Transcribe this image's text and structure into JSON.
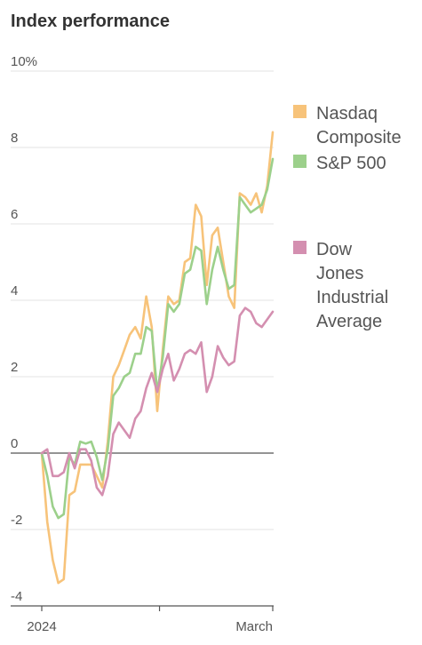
{
  "chart_data": {
    "type": "line",
    "title": "Index performance",
    "xlabel": "",
    "ylabel": "",
    "ylim": [
      -4,
      10
    ],
    "y_ticks": [
      {
        "value": 10,
        "label": "10%"
      },
      {
        "value": 8,
        "label": "8"
      },
      {
        "value": 6,
        "label": "6"
      },
      {
        "value": 4,
        "label": "4"
      },
      {
        "value": 2,
        "label": "2"
      },
      {
        "value": 0,
        "label": "0"
      },
      {
        "value": -2,
        "label": "-2"
      },
      {
        "value": -4,
        "label": "-4"
      }
    ],
    "x_ticks": [
      {
        "index": 0,
        "label": "2024"
      },
      {
        "index": 26,
        "label": ""
      },
      {
        "index": 51,
        "label": "March"
      }
    ],
    "grid": true,
    "legend_position": "right",
    "series": [
      {
        "name": "Nasdaq Composite",
        "legend_lines": [
          "Nasdaq",
          "Composite"
        ],
        "color": "#f7c37a",
        "values": [
          0,
          -1.8,
          -2.8,
          -3.4,
          -3.3,
          -1.1,
          -1.0,
          -0.3,
          -0.3,
          -0.3,
          -0.6,
          -0.9,
          0.3,
          2.0,
          2.3,
          2.7,
          3.1,
          3.3,
          3.0,
          4.1,
          3.3,
          1.1,
          2.7,
          4.1,
          3.9,
          4.0,
          5.0,
          5.1,
          6.5,
          6.2,
          4.4,
          5.7,
          5.9,
          5.0,
          4.1,
          3.8,
          6.8,
          6.7,
          6.5,
          6.8,
          6.3,
          7.0,
          8.4
        ]
      },
      {
        "name": "S&P 500",
        "legend_lines": [
          "S&P 500"
        ],
        "color": "#9cd08b",
        "values": [
          0,
          -0.6,
          -1.4,
          -1.7,
          -1.6,
          -0.1,
          -0.3,
          0.3,
          0.25,
          0.3,
          -0.1,
          -0.7,
          0.1,
          1.5,
          1.7,
          2.0,
          2.1,
          2.6,
          2.6,
          3.3,
          3.2,
          1.6,
          2.5,
          3.9,
          3.7,
          3.9,
          4.7,
          4.8,
          5.4,
          5.3,
          3.9,
          4.8,
          5.4,
          4.8,
          4.3,
          4.4,
          6.7,
          6.5,
          6.3,
          6.4,
          6.5,
          6.9,
          7.7
        ]
      },
      {
        "name": "Dow Jones Industrial Average",
        "legend_lines": [
          "Dow",
          "Jones",
          "Industrial",
          "Average"
        ],
        "color": "#d48fb0",
        "values": [
          0,
          0.1,
          -0.6,
          -0.6,
          -0.5,
          0.0,
          -0.4,
          0.1,
          0.1,
          -0.2,
          -0.9,
          -1.1,
          -0.6,
          0.5,
          0.8,
          0.6,
          0.4,
          0.9,
          1.1,
          1.7,
          2.1,
          1.6,
          2.2,
          2.6,
          1.9,
          2.2,
          2.6,
          2.7,
          2.6,
          2.9,
          1.6,
          2.0,
          2.8,
          2.5,
          2.3,
          2.4,
          3.6,
          3.8,
          3.7,
          3.4,
          3.3,
          3.5,
          3.7
        ]
      }
    ]
  }
}
